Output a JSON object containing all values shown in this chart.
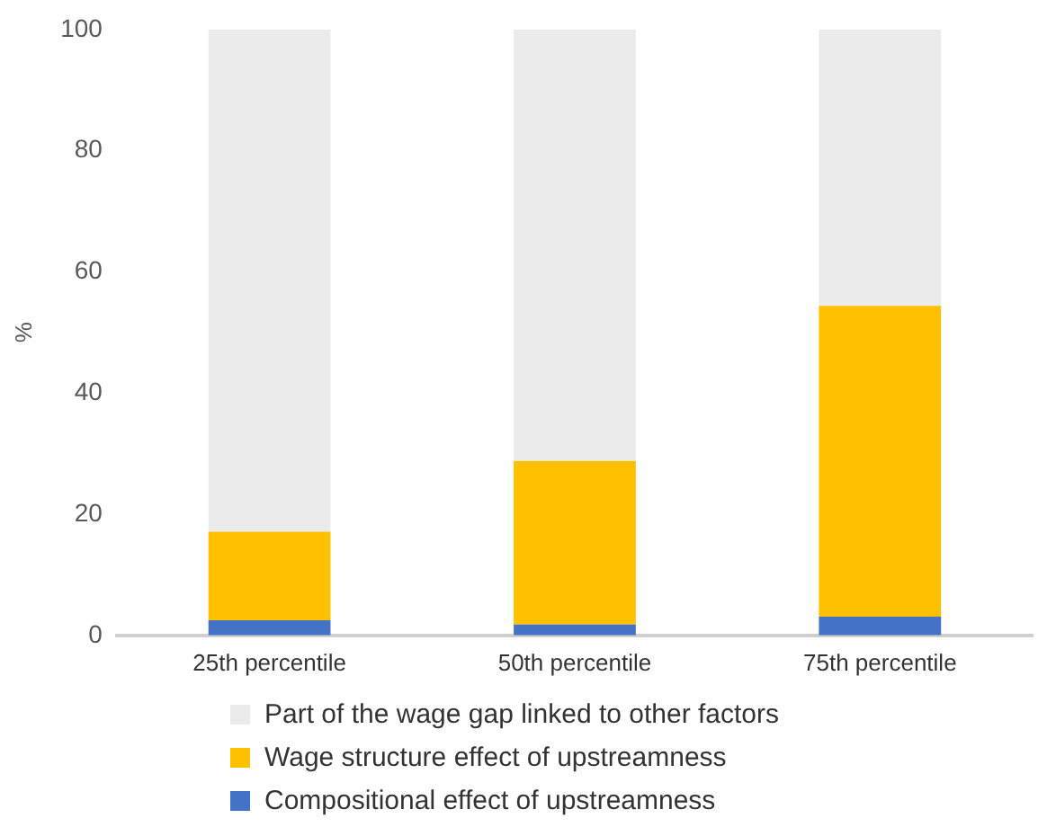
{
  "chart_data": {
    "type": "bar",
    "stacked": true,
    "ylabel": "%",
    "categories": [
      "25th percentile",
      "50th percentile",
      "75th percentile"
    ],
    "series": [
      {
        "name": "Compositional effect of upstreamness",
        "color": "#4472c4",
        "values": [
          2.5,
          1.8,
          3.1
        ]
      },
      {
        "name": "Wage structure effect of upstreamness",
        "color": "#ffc000",
        "values": [
          14.6,
          27.0,
          51.3
        ]
      },
      {
        "name": "Part of the wage gap linked to other factors",
        "color": "#ebebeb",
        "values": [
          82.9,
          71.2,
          45.6
        ]
      }
    ],
    "ylim": [
      0,
      100
    ],
    "yticks": [
      0,
      20,
      40,
      60,
      80,
      100
    ],
    "grid": false,
    "legend": "bottom"
  }
}
